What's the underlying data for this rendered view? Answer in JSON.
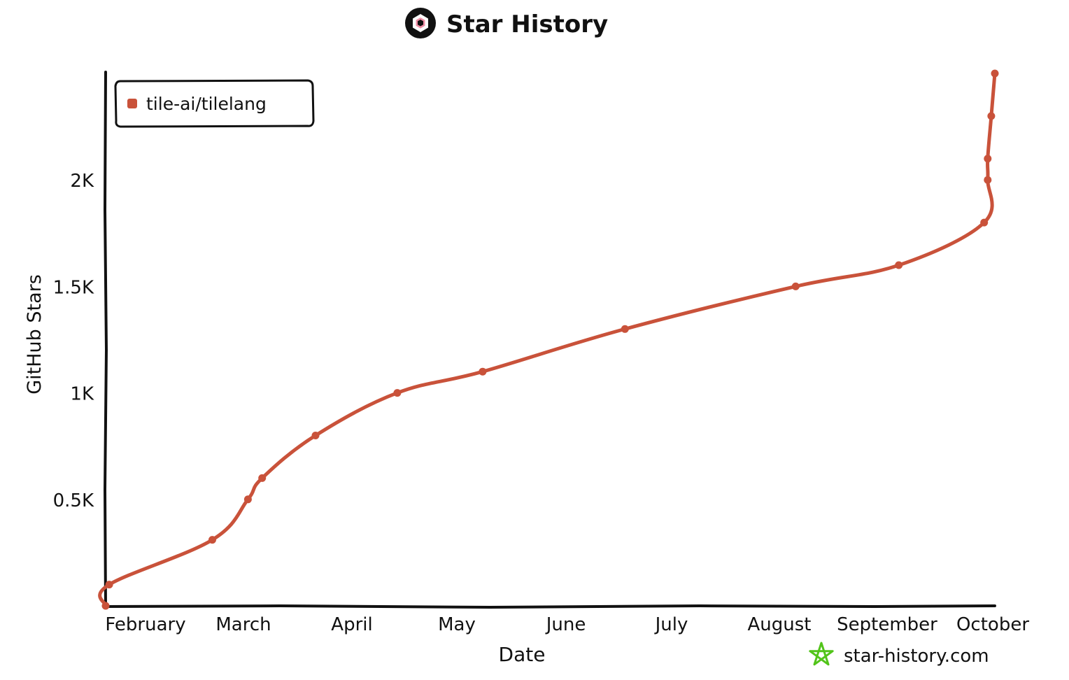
{
  "header": {
    "title": "Star History",
    "logo_icon": "star-history-logo-icon"
  },
  "watermark": {
    "text": "star-history.com",
    "icon": "star-outline-icon",
    "color": "#52c41a"
  },
  "chart_data": {
    "type": "line",
    "title": "Star History",
    "xlabel": "Date",
    "ylabel": "GitHub Stars",
    "ylim": [
      0,
      2500
    ],
    "grid": false,
    "legend_position": "top-left",
    "x_tick_labels": [
      "February",
      "March",
      "April",
      "May",
      "June",
      "July",
      "August",
      "September",
      "October"
    ],
    "y_tick_labels": [
      "0.5K",
      "1K",
      "1.5K",
      "2K"
    ],
    "y_tick_values": [
      500,
      1000,
      1500,
      2000
    ],
    "series": [
      {
        "name": "tile-ai/tilelang",
        "color": "#c9523a",
        "points": [
          {
            "x": "2025-01-01",
            "y": 0
          },
          {
            "x": "2025-01-02",
            "y": 100
          },
          {
            "x": "2025-01-31",
            "y": 310
          },
          {
            "x": "2025-02-10",
            "y": 500
          },
          {
            "x": "2025-02-14",
            "y": 600
          },
          {
            "x": "2025-03-01",
            "y": 800
          },
          {
            "x": "2025-03-24",
            "y": 1000
          },
          {
            "x": "2025-04-17",
            "y": 1100
          },
          {
            "x": "2025-05-27",
            "y": 1300
          },
          {
            "x": "2025-07-14",
            "y": 1500
          },
          {
            "x": "2025-08-12",
            "y": 1600
          },
          {
            "x": "2025-09-05",
            "y": 1800
          },
          {
            "x": "2025-09-06",
            "y": 2000
          },
          {
            "x": "2025-09-06",
            "y": 2100
          },
          {
            "x": "2025-09-07",
            "y": 2300
          },
          {
            "x": "2025-09-08",
            "y": 2500
          }
        ]
      }
    ]
  }
}
